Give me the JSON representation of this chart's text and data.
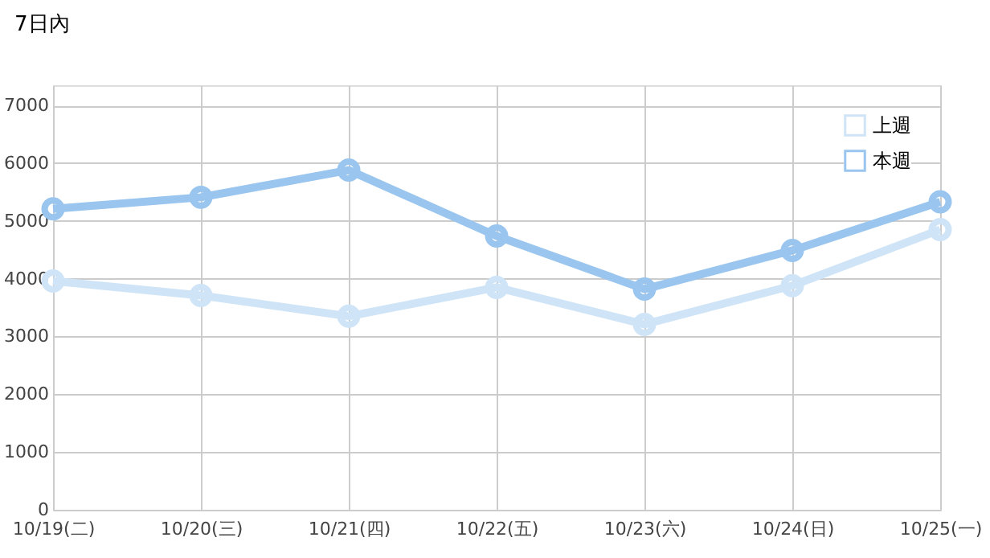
{
  "chart_data": {
    "type": "line",
    "categories": [
      "10/19(二)",
      "10/20(三)",
      "10/21(四)",
      "10/22(五)",
      "10/23(六)",
      "10/24(日)",
      "10/25(一)"
    ],
    "series": [
      {
        "name": "上週",
        "color": "#cfe4f7",
        "values": [
          3960,
          3710,
          3350,
          3850,
          3210,
          3880,
          4850
        ]
      },
      {
        "name": "本週",
        "color": "#99c5ef",
        "values": [
          5210,
          5410,
          5880,
          4740,
          3820,
          4490,
          5330
        ]
      }
    ],
    "ylim": [
      0,
      7350
    ],
    "yticks": [
      0,
      1000,
      2000,
      3000,
      4000,
      5000,
      6000,
      7000
    ],
    "grid": true,
    "legend": "top right",
    "marker": "circle",
    "line_style": "solid",
    "annotations": [
      "7日內"
    ]
  }
}
